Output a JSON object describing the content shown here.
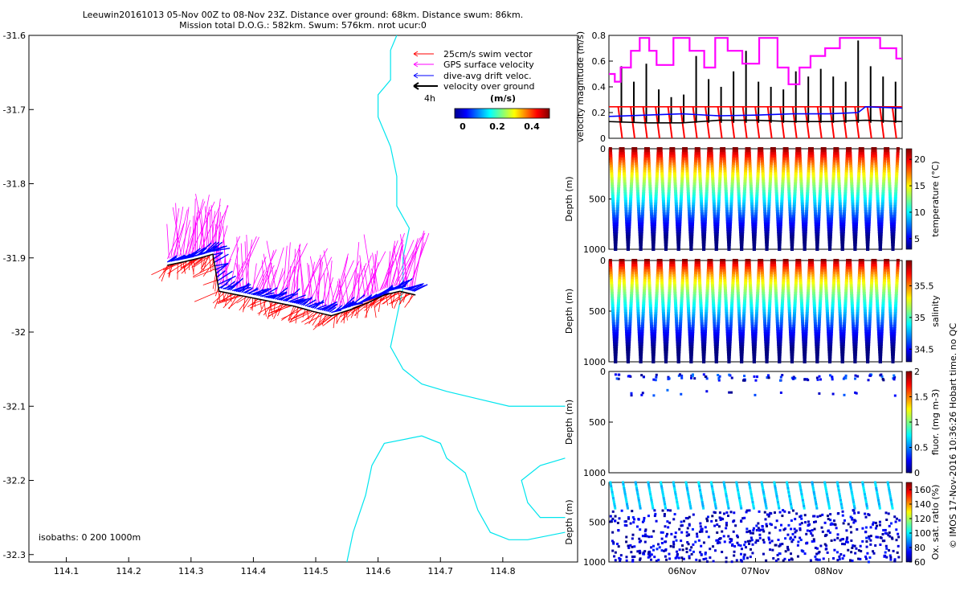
{
  "title": {
    "line1": "Leeuwin20161013 05-Nov 00Z to 08-Nov 23Z. Distance over ground: 68km. Distance swum: 86km.",
    "line2": "Mission total D.O.G.: 582km. Swum: 576km. nrot ucur:0"
  },
  "watermark": "© IMOS 17-Nov-2016 10:36:26 Hobart time. no QC",
  "colors": {
    "swim": "#ff0000",
    "gps": "#ff00ff",
    "drift": "#0000ff",
    "ground": "#000000",
    "coast": "#00e5ee"
  },
  "chart_data": [
    {
      "type": "scatter",
      "name": "glider-track-map",
      "xlim": [
        114.04,
        114.92
      ],
      "ylim": [
        -32.31,
        -31.6
      ],
      "x_ticks": [
        "114.1",
        "114.2",
        "114.3",
        "114.4",
        "114.5",
        "114.6",
        "114.7",
        "114.8"
      ],
      "y_ticks": [
        "-31.6",
        "-31.7",
        "-31.8",
        "-31.9",
        "-32",
        "-32.1",
        "-32.2",
        "-32.3"
      ],
      "legend": {
        "entries": [
          "25cm/s swim vector",
          "GPS surface velocity",
          "dive-avg drift veloc.",
          "velocity over ground"
        ],
        "scale_label": "4h",
        "colorbar_title": "(m/s)",
        "colorbar_ticks": [
          "0",
          "0.2",
          "0.4"
        ]
      },
      "isobaths_label": "isobaths: 0   200  1000m",
      "track": [
        [
          114.262,
          -31.91
        ],
        [
          114.29,
          -31.905
        ],
        [
          114.315,
          -31.9
        ],
        [
          114.335,
          -31.895
        ],
        [
          114.345,
          -31.945
        ],
        [
          114.375,
          -31.95
        ],
        [
          114.405,
          -31.955
        ],
        [
          114.435,
          -31.96
        ],
        [
          114.465,
          -31.965
        ],
        [
          114.495,
          -31.972
        ],
        [
          114.525,
          -31.978
        ],
        [
          114.555,
          -31.97
        ],
        [
          114.585,
          -31.96
        ],
        [
          114.61,
          -31.95
        ],
        [
          114.635,
          -31.945
        ],
        [
          114.66,
          -31.95
        ]
      ],
      "gps_velocity_direction": [
        -0.2,
        1
      ],
      "swim_vector_direction": [
        -0.55,
        -0.85
      ]
    },
    {
      "type": "line",
      "name": "velocity-magnitude",
      "ylabel": "velocity magnitude (m/s)",
      "ylim": [
        0,
        0.8
      ],
      "y_ticks": [
        "0",
        "0.2",
        "0.4",
        "0.6",
        "0.8"
      ],
      "x_range_days": [
        0,
        4
      ],
      "series": [
        {
          "name": "GPS surface velocity",
          "color": "#ff00ff",
          "x": [
            0,
            0.08,
            0.08,
            0.16,
            0.16,
            0.3,
            0.3,
            0.42,
            0.42,
            0.55,
            0.55,
            0.65,
            0.65,
            0.88,
            0.88,
            1.1,
            1.1,
            1.3,
            1.3,
            1.45,
            1.45,
            1.62,
            1.62,
            1.82,
            1.82,
            2.05,
            2.05,
            2.3,
            2.3,
            2.45,
            2.45,
            2.6,
            2.6,
            2.75,
            2.75,
            2.95,
            2.95,
            3.15,
            3.15,
            3.45,
            3.45,
            3.7,
            3.7,
            3.92,
            3.92,
            4.0
          ],
          "y": [
            0.5,
            0.5,
            0.44,
            0.44,
            0.55,
            0.55,
            0.68,
            0.68,
            0.78,
            0.78,
            0.68,
            0.68,
            0.57,
            0.57,
            0.78,
            0.78,
            0.68,
            0.68,
            0.55,
            0.55,
            0.78,
            0.78,
            0.68,
            0.68,
            0.58,
            0.58,
            0.78,
            0.78,
            0.55,
            0.55,
            0.42,
            0.42,
            0.55,
            0.55,
            0.64,
            0.64,
            0.7,
            0.7,
            0.78,
            0.78,
            0.78,
            0.78,
            0.7,
            0.7,
            0.62,
            0.62
          ]
        },
        {
          "name": "swim",
          "color": "#ff0000",
          "x": [
            0,
            4
          ],
          "y": [
            0.245,
            0.245
          ]
        },
        {
          "name": "dive-avg drift",
          "color": "#0000ff",
          "x": [
            0,
            0.5,
            1.0,
            1.5,
            2.0,
            2.5,
            3.0,
            3.4,
            3.5,
            4.0
          ],
          "y": [
            0.17,
            0.18,
            0.19,
            0.175,
            0.18,
            0.19,
            0.19,
            0.2,
            0.245,
            0.235
          ]
        },
        {
          "name": "velocity over ground",
          "color": "#000000",
          "x": [
            0,
            0.5,
            1.0,
            1.5,
            2.0,
            2.5,
            3.0,
            3.5,
            4.0
          ],
          "y": [
            0.13,
            0.12,
            0.12,
            0.14,
            0.14,
            0.13,
            0.13,
            0.14,
            0.13
          ]
        }
      ],
      "spike_peaks": [
        0.56,
        0.44,
        0.58,
        0.38,
        0.32,
        0.34,
        0.64,
        0.46,
        0.4,
        0.52,
        0.68,
        0.44,
        0.4,
        0.38,
        0.52,
        0.48,
        0.54,
        0.48,
        0.44,
        0.76,
        0.56,
        0.48,
        0.44
      ]
    },
    {
      "type": "scatter",
      "name": "temperature-section",
      "ylabel": "Depth (m)",
      "colorbar_label": "temperature (°C)",
      "colorbar_ticks": [
        "5",
        "10",
        "15",
        "20"
      ],
      "colorbar_range": [
        3,
        22
      ],
      "y_ticks": [
        "0",
        "500",
        "1000"
      ],
      "dive_count": 23
    },
    {
      "type": "scatter",
      "name": "salinity-section",
      "ylabel": "Depth (m)",
      "colorbar_label": "salinity",
      "colorbar_ticks": [
        "34.5",
        "35",
        "35.5"
      ],
      "colorbar_range": [
        34.3,
        35.9
      ],
      "y_ticks": [
        "0",
        "500",
        "1000"
      ],
      "dive_count": 23
    },
    {
      "type": "scatter",
      "name": "fluorescence-section",
      "ylabel": "Depth (m)",
      "colorbar_label": "fluor. (mg m-3)",
      "colorbar_ticks": [
        "0",
        "0.5",
        "1",
        "1.5",
        "2"
      ],
      "colorbar_range": [
        0,
        2
      ],
      "y_ticks": [
        "0",
        "500",
        "1000"
      ]
    },
    {
      "type": "scatter",
      "name": "oxygen-section",
      "ylabel": "Depth (m)",
      "xlabel_ticks": [
        "06Nov",
        "07Nov",
        "08Nov"
      ],
      "colorbar_label": "Ox. sat. ratio (%)",
      "colorbar_ticks": [
        "60",
        "80",
        "100",
        "120",
        "140",
        "160"
      ],
      "colorbar_range": [
        60,
        170
      ],
      "y_ticks": [
        "0",
        "500",
        "1000"
      ]
    }
  ]
}
